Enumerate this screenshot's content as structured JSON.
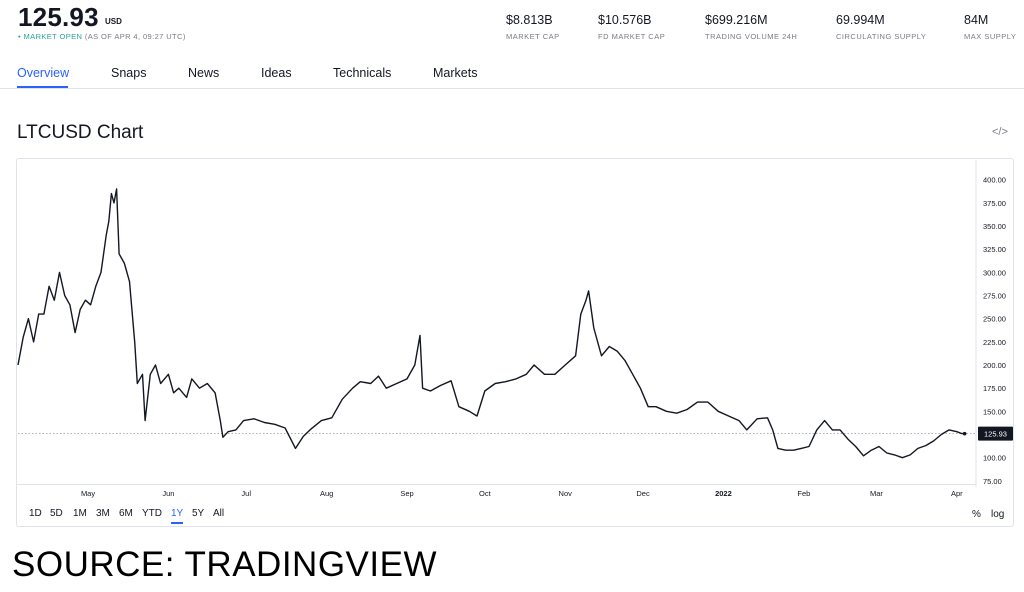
{
  "header": {
    "price": "125.93",
    "price_unit": "USD",
    "status_dot": "•",
    "status_open": "MARKET OPEN",
    "status_time": "(AS OF APR 4, 09:27 UTC)",
    "stats": [
      {
        "value": "$8.813B",
        "label": "MARKET CAP"
      },
      {
        "value": "$10.576B",
        "label": "FD MARKET CAP"
      },
      {
        "value": "$699.216M",
        "label": "TRADING VOLUME 24H"
      },
      {
        "value": "69.994M",
        "label": "CIRCULATING SUPPLY"
      },
      {
        "value": "84M",
        "label": "MAX SUPPLY"
      }
    ]
  },
  "tabs": [
    "Overview",
    "Snaps",
    "News",
    "Ideas",
    "Technicals",
    "Markets"
  ],
  "active_tab": "Overview",
  "chart_title": "LTCUSD Chart",
  "embed_icon": "</>",
  "ranges": [
    "1D",
    "5D",
    "1M",
    "3M",
    "6M",
    "YTD",
    "1Y",
    "5Y",
    "All"
  ],
  "active_range": "1Y",
  "scale_buttons": [
    "%",
    "log"
  ],
  "source_text": "SOURCE: TRADINGVIEW",
  "colors": {
    "accent": "#2962ff",
    "line": "#131722",
    "status_green": "#26a69a",
    "muted": "#787b86"
  },
  "chart_data": {
    "type": "line",
    "title": "LTCUSD Chart",
    "xlabel": "",
    "ylabel": "",
    "ylim": [
      75,
      400
    ],
    "y_ticks": [
      75,
      100,
      125,
      150,
      175,
      200,
      225,
      250,
      275,
      300,
      325,
      350,
      375,
      400
    ],
    "y_tick_labels": [
      "75.00",
      "100.00",
      "125.00",
      "150.00",
      "175.00",
      "200.00",
      "225.00",
      "250.00",
      "275.00",
      "300.00",
      "325.00",
      "350.00",
      "375.00",
      "400.00"
    ],
    "x_ticks": [
      {
        "label": "May",
        "date": "2021-05-01",
        "bold": false
      },
      {
        "label": "Jun",
        "date": "2021-06-01",
        "bold": false
      },
      {
        "label": "Jul",
        "date": "2021-07-01",
        "bold": false
      },
      {
        "label": "Aug",
        "date": "2021-08-01",
        "bold": false
      },
      {
        "label": "Sep",
        "date": "2021-09-01",
        "bold": false
      },
      {
        "label": "Oct",
        "date": "2021-10-01",
        "bold": false
      },
      {
        "label": "Nov",
        "date": "2021-11-01",
        "bold": false
      },
      {
        "label": "Dec",
        "date": "2021-12-01",
        "bold": false
      },
      {
        "label": "2022",
        "date": "2022-01-01",
        "bold": true
      },
      {
        "label": "Feb",
        "date": "2022-02-01",
        "bold": false
      },
      {
        "label": "Mar",
        "date": "2022-03-01",
        "bold": false
      },
      {
        "label": "Apr",
        "date": "2022-04-01",
        "bold": false
      }
    ],
    "xlim": [
      "2021-04-04",
      "2022-04-08"
    ],
    "last_value": 125.93,
    "last_value_label": "125.93",
    "grid": false,
    "series": [
      {
        "values": [
          [
            "2021-04-04",
            200
          ],
          [
            "2021-04-06",
            230
          ],
          [
            "2021-04-08",
            250
          ],
          [
            "2021-04-10",
            225
          ],
          [
            "2021-04-12",
            255
          ],
          [
            "2021-04-14",
            255
          ],
          [
            "2021-04-16",
            285
          ],
          [
            "2021-04-18",
            270
          ],
          [
            "2021-04-20",
            300
          ],
          [
            "2021-04-22",
            275
          ],
          [
            "2021-04-24",
            265
          ],
          [
            "2021-04-26",
            235
          ],
          [
            "2021-04-28",
            260
          ],
          [
            "2021-04-30",
            270
          ],
          [
            "2021-05-02",
            265
          ],
          [
            "2021-05-04",
            285
          ],
          [
            "2021-05-06",
            300
          ],
          [
            "2021-05-08",
            340
          ],
          [
            "2021-05-09",
            355
          ],
          [
            "2021-05-10",
            385
          ],
          [
            "2021-05-11",
            375
          ],
          [
            "2021-05-12",
            390
          ],
          [
            "2021-05-13",
            320
          ],
          [
            "2021-05-15",
            310
          ],
          [
            "2021-05-17",
            290
          ],
          [
            "2021-05-19",
            225
          ],
          [
            "2021-05-20",
            180
          ],
          [
            "2021-05-22",
            190
          ],
          [
            "2021-05-23",
            140
          ],
          [
            "2021-05-25",
            190
          ],
          [
            "2021-05-27",
            200
          ],
          [
            "2021-05-29",
            180
          ],
          [
            "2021-06-01",
            190
          ],
          [
            "2021-06-03",
            170
          ],
          [
            "2021-06-05",
            175
          ],
          [
            "2021-06-08",
            165
          ],
          [
            "2021-06-10",
            185
          ],
          [
            "2021-06-13",
            175
          ],
          [
            "2021-06-16",
            180
          ],
          [
            "2021-06-19",
            170
          ],
          [
            "2021-06-21",
            140
          ],
          [
            "2021-06-22",
            122
          ],
          [
            "2021-06-24",
            128
          ],
          [
            "2021-06-27",
            130
          ],
          [
            "2021-06-30",
            140
          ],
          [
            "2021-07-04",
            142
          ],
          [
            "2021-07-08",
            138
          ],
          [
            "2021-07-12",
            136
          ],
          [
            "2021-07-16",
            132
          ],
          [
            "2021-07-20",
            110
          ],
          [
            "2021-07-23",
            123
          ],
          [
            "2021-07-26",
            131
          ],
          [
            "2021-07-30",
            140
          ],
          [
            "2021-08-03",
            143
          ],
          [
            "2021-08-07",
            163
          ],
          [
            "2021-08-11",
            175
          ],
          [
            "2021-08-14",
            182
          ],
          [
            "2021-08-18",
            180
          ],
          [
            "2021-08-21",
            188
          ],
          [
            "2021-08-24",
            175
          ],
          [
            "2021-08-28",
            180
          ],
          [
            "2021-09-01",
            185
          ],
          [
            "2021-09-04",
            200
          ],
          [
            "2021-09-06",
            232
          ],
          [
            "2021-09-07",
            175
          ],
          [
            "2021-09-10",
            172
          ],
          [
            "2021-09-14",
            178
          ],
          [
            "2021-09-18",
            183
          ],
          [
            "2021-09-21",
            155
          ],
          [
            "2021-09-25",
            150
          ],
          [
            "2021-09-28",
            145
          ],
          [
            "2021-10-01",
            172
          ],
          [
            "2021-10-05",
            180
          ],
          [
            "2021-10-09",
            182
          ],
          [
            "2021-10-13",
            185
          ],
          [
            "2021-10-17",
            190
          ],
          [
            "2021-10-20",
            200
          ],
          [
            "2021-10-24",
            190
          ],
          [
            "2021-10-28",
            190
          ],
          [
            "2021-11-01",
            200
          ],
          [
            "2021-11-05",
            210
          ],
          [
            "2021-11-07",
            255
          ],
          [
            "2021-11-09",
            270
          ],
          [
            "2021-11-10",
            280
          ],
          [
            "2021-11-12",
            240
          ],
          [
            "2021-11-15",
            210
          ],
          [
            "2021-11-18",
            220
          ],
          [
            "2021-11-21",
            215
          ],
          [
            "2021-11-24",
            205
          ],
          [
            "2021-11-27",
            190
          ],
          [
            "2021-11-30",
            175
          ],
          [
            "2021-12-03",
            155
          ],
          [
            "2021-12-06",
            155
          ],
          [
            "2021-12-10",
            150
          ],
          [
            "2021-12-14",
            148
          ],
          [
            "2021-12-18",
            152
          ],
          [
            "2021-12-22",
            160
          ],
          [
            "2021-12-26",
            160
          ],
          [
            "2021-12-30",
            150
          ],
          [
            "2022-01-03",
            145
          ],
          [
            "2022-01-07",
            140
          ],
          [
            "2022-01-10",
            130
          ],
          [
            "2022-01-14",
            142
          ],
          [
            "2022-01-18",
            143
          ],
          [
            "2022-01-20",
            130
          ],
          [
            "2022-01-22",
            110
          ],
          [
            "2022-01-25",
            108
          ],
          [
            "2022-01-28",
            108
          ],
          [
            "2022-01-31",
            110
          ],
          [
            "2022-02-03",
            112
          ],
          [
            "2022-02-06",
            130
          ],
          [
            "2022-02-09",
            140
          ],
          [
            "2022-02-12",
            130
          ],
          [
            "2022-02-15",
            130
          ],
          [
            "2022-02-18",
            120
          ],
          [
            "2022-02-21",
            112
          ],
          [
            "2022-02-24",
            102
          ],
          [
            "2022-02-27",
            108
          ],
          [
            "2022-03-02",
            112
          ],
          [
            "2022-03-05",
            105
          ],
          [
            "2022-03-08",
            103
          ],
          [
            "2022-03-11",
            100
          ],
          [
            "2022-03-14",
            103
          ],
          [
            "2022-03-17",
            110
          ],
          [
            "2022-03-20",
            113
          ],
          [
            "2022-03-23",
            118
          ],
          [
            "2022-03-26",
            125
          ],
          [
            "2022-03-29",
            130
          ],
          [
            "2022-04-01",
            128
          ],
          [
            "2022-04-03",
            126
          ],
          [
            "2022-04-04",
            125.93
          ]
        ]
      }
    ]
  }
}
